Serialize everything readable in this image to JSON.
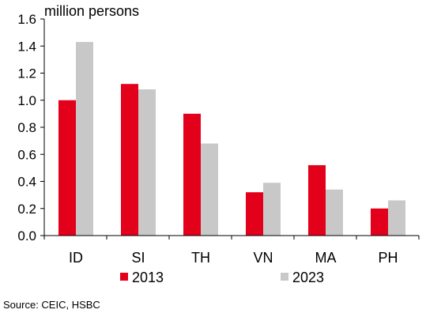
{
  "chart_data": {
    "type": "bar",
    "unit_label": "million persons",
    "categories": [
      "ID",
      "SI",
      "TH",
      "VN",
      "MA",
      "PH"
    ],
    "series": [
      {
        "name": "2013",
        "color": "#e3001b",
        "values": [
          1.0,
          1.12,
          0.9,
          0.32,
          0.52,
          0.2
        ]
      },
      {
        "name": "2023",
        "color": "#c8c8c8",
        "values": [
          1.43,
          1.08,
          0.68,
          0.39,
          0.34,
          0.26
        ]
      }
    ],
    "ylim": [
      0,
      1.6
    ],
    "yticks": [
      "0.0",
      "0.2",
      "0.4",
      "0.6",
      "0.8",
      "1.0",
      "1.2",
      "1.4",
      "1.6"
    ],
    "grid": false,
    "legend_position": "bottom"
  },
  "source": "Source: CEIC, HSBC"
}
